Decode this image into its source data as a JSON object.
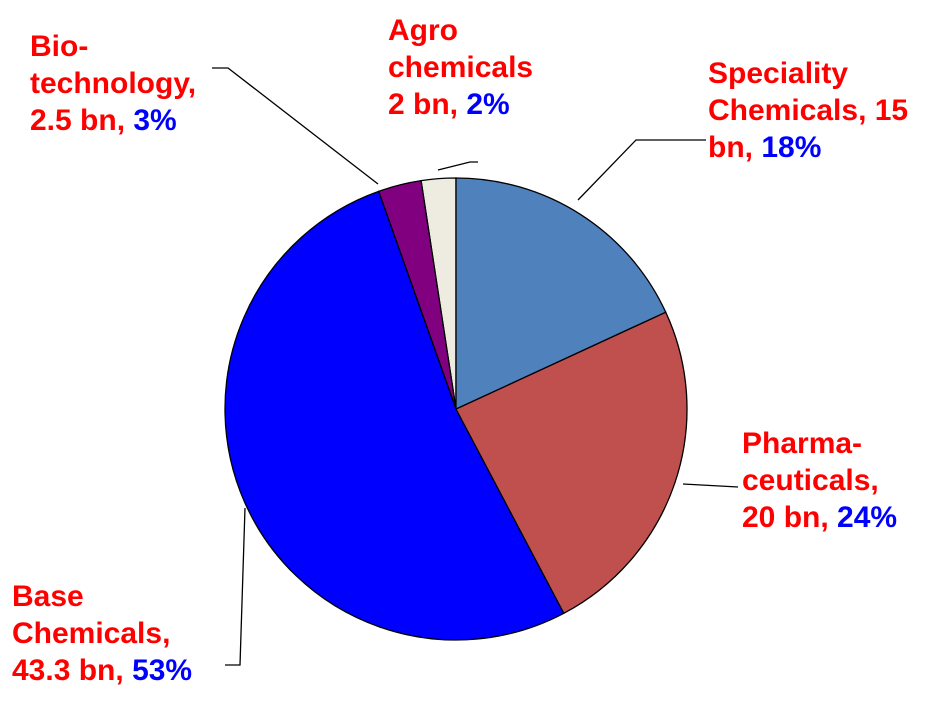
{
  "chart_data": {
    "type": "pie",
    "labels": [
      "Speciality Chemicals, 15 bn,",
      "Pharma-ceuticals, 20 bn,",
      "Base Chemicals, 43.3 bn,",
      "Bio-technology, 2.5 bn,",
      "Agro chemicals 2 bn,"
    ],
    "values": [
      15,
      20,
      43.3,
      2.5,
      2
    ],
    "percent_labels": [
      "18%",
      "24%",
      "53%",
      "3%",
      "2%"
    ],
    "colors": [
      "#4f81bd",
      "#c0504d",
      "#0000ff",
      "#800080",
      "#eeece1"
    ]
  }
}
